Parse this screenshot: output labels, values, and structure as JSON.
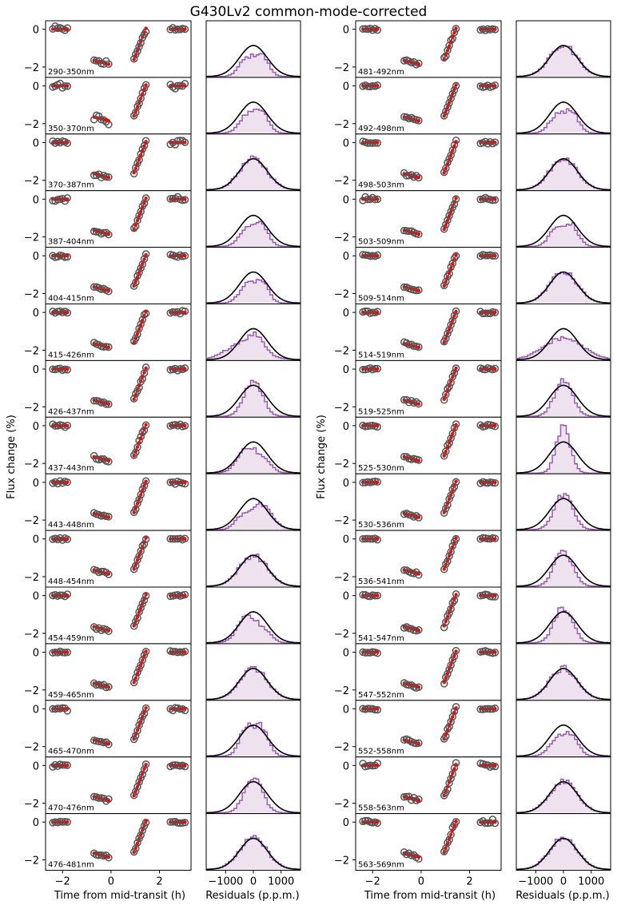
{
  "chart_data": {
    "type": "scatter",
    "title": "G430Lv2 common-mode-corrected",
    "ylabel": "Flux change (%)",
    "xlabel": "Time from mid-transit (h)",
    "hist_xlabel": "Residuals (p.p.m.)",
    "lc_xlim": [
      -2.7,
      3.3
    ],
    "lc_ylim": [
      -2.55,
      0.45
    ],
    "lc_xticks": [
      -2,
      0,
      2
    ],
    "lc_yticks": [
      0,
      -2
    ],
    "hist_xlim": [
      -1700,
      1700
    ],
    "hist_xticks": [
      -1000,
      0,
      1000
    ],
    "hist_tick_labels": [
      "−1000",
      "0",
      "1000"
    ],
    "lc_tick_labels": {
      "x": [
        "−2",
        "0",
        "2"
      ],
      "y": [
        "0",
        "−2"
      ]
    },
    "gauss_sigma_ppm": 500,
    "colors": {
      "data_edge": "#555555",
      "model": "#dd1111",
      "hist_line": "#9b59b6",
      "hist_fill": "#efe2ef",
      "gauss": "#000000"
    },
    "time_groups": [
      [
        -2.4,
        -2.3,
        -2.2,
        -2.1,
        -2.0,
        -1.9,
        -1.8
      ],
      [
        -0.7,
        -0.6,
        -0.5,
        -0.4,
        -0.3,
        -0.2,
        -0.1
      ],
      [
        0.95,
        1.02,
        1.09,
        1.16,
        1.23,
        1.3,
        1.37,
        1.44
      ],
      [
        2.45,
        2.55,
        2.65,
        2.75,
        2.85,
        2.95,
        3.05
      ]
    ],
    "model_levels": {
      "oot1": 0.0,
      "group2_start": -1.65,
      "group2_end": -1.85,
      "group3_start": -1.6,
      "group3_end": 0.05,
      "oot2": 0.0
    },
    "columns": [
      {
        "bins": [
          "290-350nm",
          "350-370nm",
          "370-387nm",
          "387-404nm",
          "404-415nm",
          "415-426nm",
          "426-437nm",
          "437-443nm",
          "443-448nm",
          "448-454nm",
          "454-459nm",
          "459-465nm",
          "465-470nm",
          "470-476nm",
          "476-481nm"
        ],
        "residual_scatter": [
          0.17,
          0.15,
          0.09,
          0.08,
          0.07,
          0.08,
          0.06,
          0.07,
          0.07,
          0.06,
          0.06,
          0.06,
          0.07,
          0.06,
          0.07
        ],
        "hist_shapes": [
          "bimodal",
          "bimodal",
          "normal",
          "bimodal",
          "bimodal",
          "wide-left",
          "narrow",
          "skew-left",
          "skew-right",
          "normal",
          "skew-left",
          "normal",
          "dip",
          "narrow",
          "normal"
        ]
      },
      {
        "bins": [
          "481-492nm",
          "492-498nm",
          "498-503nm",
          "503-509nm",
          "509-514nm",
          "514-519nm",
          "519-525nm",
          "525-530nm",
          "530-536nm",
          "536-541nm",
          "541-547nm",
          "547-552nm",
          "552-558nm",
          "558-563nm",
          "563-569nm"
        ],
        "residual_scatter": [
          0.07,
          0.06,
          0.06,
          0.08,
          0.06,
          0.06,
          0.06,
          0.06,
          0.06,
          0.06,
          0.07,
          0.07,
          0.07,
          0.1,
          0.1
        ],
        "hist_shapes": [
          "normal",
          "bimodal",
          "normal",
          "bimodal",
          "normal",
          "wide",
          "narrow",
          "tall",
          "narrow",
          "narrow",
          "narrow",
          "normal",
          "bimodal",
          "normal",
          "normal"
        ]
      }
    ]
  }
}
